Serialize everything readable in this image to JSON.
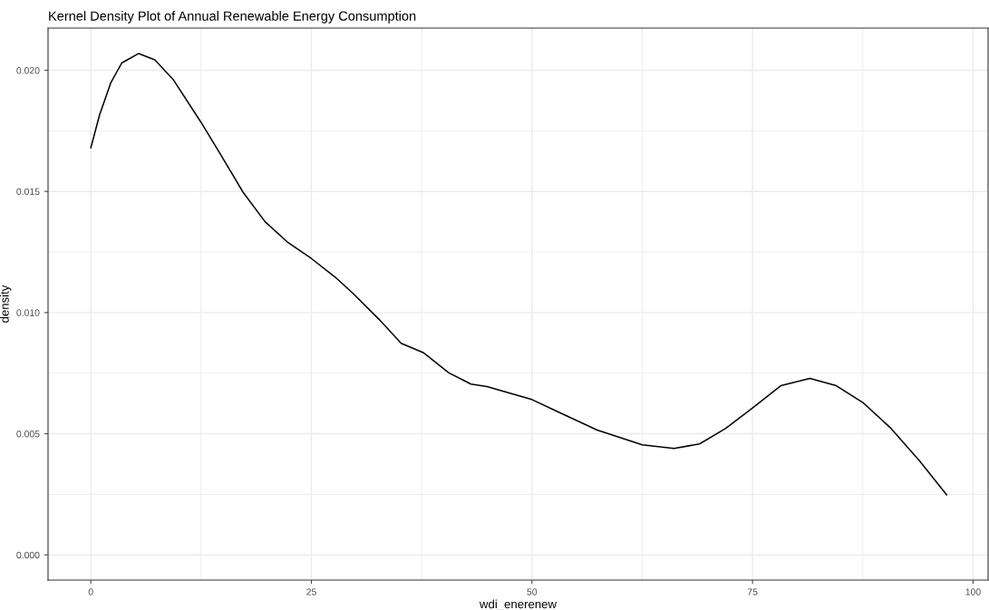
{
  "chart_data": {
    "type": "line",
    "title": "Kernel Density Plot of Annual Renewable Energy Consumption",
    "xlabel": "wdi_enerenew",
    "ylabel": "density",
    "series": [
      {
        "color": "#000000",
        "x": [
          0,
          1.0,
          2.25,
          3.5,
          5.4,
          7.25,
          9.33,
          12.46,
          14.75,
          17.25,
          19.75,
          22.25,
          25,
          27.67,
          29.75,
          32.67,
          35.17,
          37.67,
          40.58,
          43.08,
          44.9,
          50,
          53.2,
          57.4,
          62.5,
          66.1,
          69.0,
          71.96,
          75,
          78.2,
          81.5,
          84.5,
          87.5,
          90.7,
          94.0,
          97.0
        ],
        "values": [
          0.0168,
          0.01817,
          0.01947,
          0.0203,
          0.02069,
          0.02043,
          0.01962,
          0.01787,
          0.0165,
          0.01497,
          0.01375,
          0.01292,
          0.01223,
          0.01147,
          0.01078,
          0.00972,
          0.00873,
          0.00835,
          0.00751,
          0.00705,
          0.00695,
          0.00641,
          0.00586,
          0.00515,
          0.00454,
          0.00439,
          0.00458,
          0.00522,
          0.00606,
          0.00698,
          0.00728,
          0.00698,
          0.00629,
          0.00522,
          0.00385,
          0.00248
        ]
      }
    ],
    "xlim": [
      -4.85,
      101.7
    ],
    "ylim": [
      -0.00104,
      0.02174
    ],
    "xticks": [
      0,
      25,
      50,
      75,
      100
    ],
    "yticks": [
      {
        "value": 0,
        "label": "0.000"
      },
      {
        "value": 0.005,
        "label": "0.005"
      },
      {
        "value": 0.01,
        "label": "0.010"
      },
      {
        "value": 0.015,
        "label": "0.015"
      },
      {
        "value": 0.02,
        "label": "0.020"
      }
    ],
    "grid": true,
    "legend": false,
    "marker": "none",
    "line_style": "solid"
  }
}
